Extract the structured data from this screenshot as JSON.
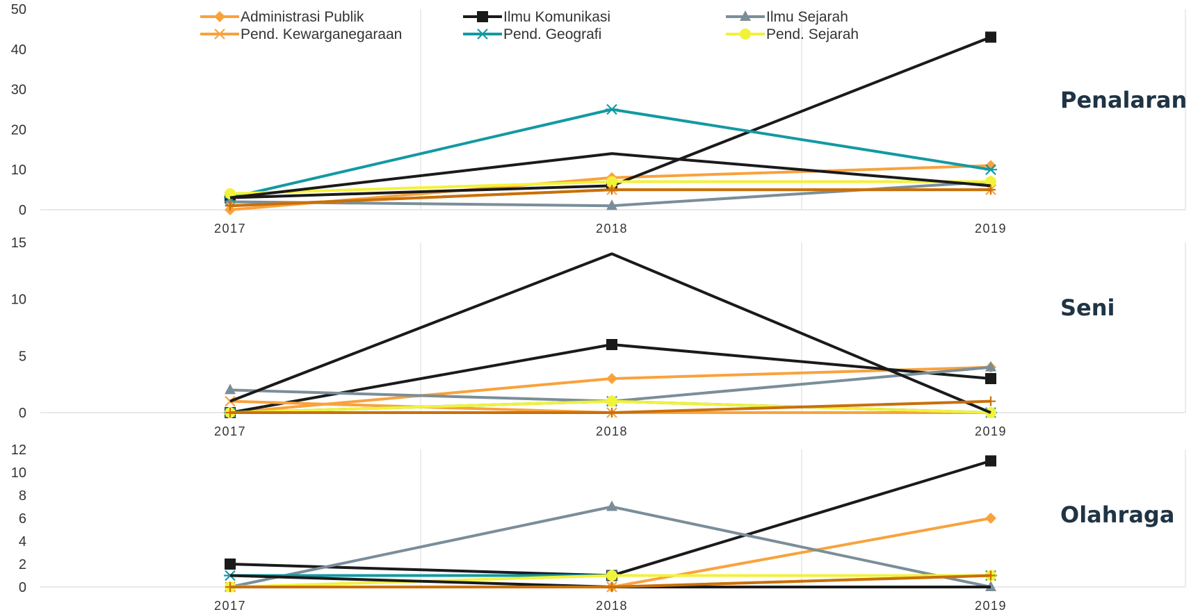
{
  "chart_data": [
    {
      "type": "line",
      "title": "Penalaran",
      "x": [
        "2017",
        "2018",
        "2019"
      ],
      "ylim": [
        0,
        50
      ],
      "yticks": [
        0,
        10,
        20,
        30,
        40,
        50
      ],
      "grid": "vertical",
      "legend": "top-center",
      "series": [
        {
          "name": "Administrasi Publik",
          "values": [
            0,
            8,
            11
          ],
          "color": "#f9a23c",
          "marker": "diamond"
        },
        {
          "name": "Ilmu Komunikasi",
          "values": [
            3,
            6,
            43
          ],
          "color": "#1a1a1a",
          "marker": "square"
        },
        {
          "name": "Ilmu Sejarah",
          "values": [
            2,
            1,
            7
          ],
          "color": "#7a8e99",
          "marker": "triangle"
        },
        {
          "name": "Pend. Kewarganegaraan",
          "values": [
            1,
            5,
            5
          ],
          "color": "#f9a23c",
          "marker": "x"
        },
        {
          "name": "Pend. Geografi",
          "values": [
            3,
            25,
            10
          ],
          "color": "#1399a2",
          "marker": "asterisk"
        },
        {
          "name": "Pend. Sejarah",
          "values": [
            4,
            7,
            7
          ],
          "color": "#f2f23a",
          "marker": "circle"
        },
        {
          "name": "",
          "values": [
            3,
            14,
            6
          ],
          "color": "#1a1a1a",
          "marker": "none"
        },
        {
          "name": "",
          "values": [
            1,
            5,
            5
          ],
          "color": "#c8700a",
          "marker": "plus"
        }
      ]
    },
    {
      "type": "line",
      "title": "Seni",
      "x": [
        "2017",
        "2018",
        "2019"
      ],
      "ylim": [
        0,
        15
      ],
      "yticks": [
        0,
        5,
        10,
        15
      ],
      "grid": "vertical",
      "series": [
        {
          "name": "Administrasi Publik",
          "values": [
            0,
            3,
            4
          ],
          "color": "#f9a23c",
          "marker": "diamond"
        },
        {
          "name": "Ilmu Komunikasi",
          "values": [
            0,
            6,
            3
          ],
          "color": "#1a1a1a",
          "marker": "square"
        },
        {
          "name": "Ilmu Sejarah",
          "values": [
            2,
            1,
            4
          ],
          "color": "#7a8e99",
          "marker": "triangle"
        },
        {
          "name": "Pend. Kewarganegaraan",
          "values": [
            1,
            0,
            0
          ],
          "color": "#f9a23c",
          "marker": "x"
        },
        {
          "name": "Pend. Geografi",
          "values": [
            0,
            1,
            0
          ],
          "color": "#1399a2",
          "marker": "asterisk"
        },
        {
          "name": "Pend. Sejarah",
          "values": [
            0,
            1,
            0
          ],
          "color": "#f2f23a",
          "marker": "circle"
        },
        {
          "name": "",
          "values": [
            1,
            14,
            0
          ],
          "color": "#1a1a1a",
          "marker": "none"
        },
        {
          "name": "",
          "values": [
            0,
            0,
            1
          ],
          "color": "#c8700a",
          "marker": "plus"
        }
      ]
    },
    {
      "type": "line",
      "title": "Olahraga",
      "x": [
        "2017",
        "2018",
        "2019"
      ],
      "ylim": [
        0,
        12
      ],
      "yticks": [
        0,
        2,
        4,
        6,
        8,
        10,
        12
      ],
      "grid": "vertical",
      "series": [
        {
          "name": "Administrasi Publik",
          "values": [
            0,
            0,
            6
          ],
          "color": "#f9a23c",
          "marker": "diamond"
        },
        {
          "name": "Ilmu Komunikasi",
          "values": [
            2,
            1,
            11
          ],
          "color": "#1a1a1a",
          "marker": "square"
        },
        {
          "name": "Ilmu Sejarah",
          "values": [
            0,
            7,
            0
          ],
          "color": "#7a8e99",
          "marker": "triangle"
        },
        {
          "name": "Pend. Kewarganegaraan",
          "values": [
            0,
            0,
            1
          ],
          "color": "#f9a23c",
          "marker": "x"
        },
        {
          "name": "Pend. Geografi",
          "values": [
            1,
            1,
            1
          ],
          "color": "#1399a2",
          "marker": "asterisk"
        },
        {
          "name": "Pend. Sejarah",
          "values": [
            0,
            1,
            1
          ],
          "color": "#f2f23a",
          "marker": "circle"
        },
        {
          "name": "",
          "values": [
            1,
            0,
            0
          ],
          "color": "#1a1a1a",
          "marker": "none"
        },
        {
          "name": "",
          "values": [
            0,
            0,
            1
          ],
          "color": "#c8700a",
          "marker": "plus"
        }
      ]
    }
  ]
}
